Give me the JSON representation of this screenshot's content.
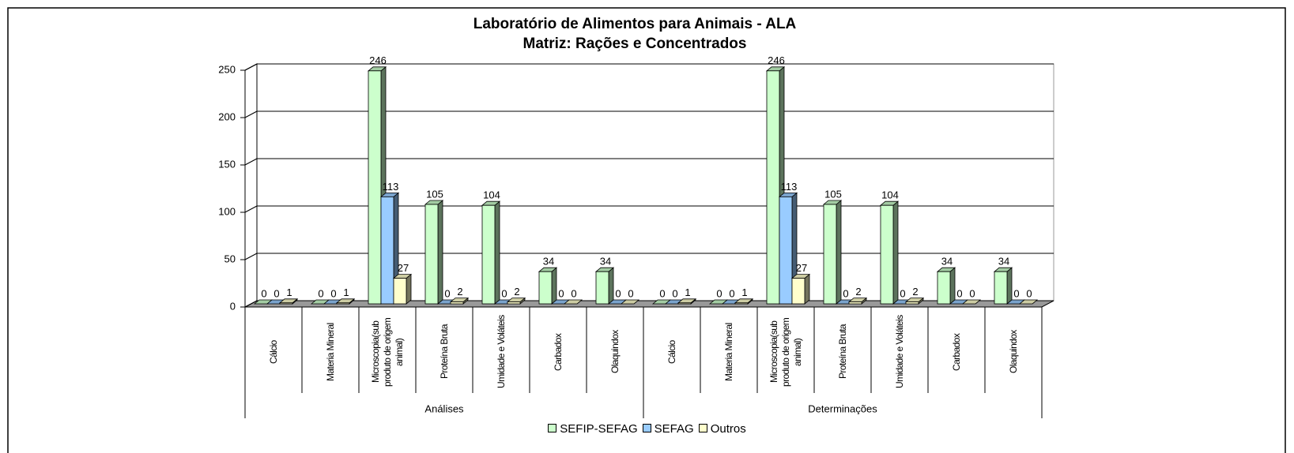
{
  "chart_data": {
    "type": "bar3d",
    "title": "Laboratório de Alimentos para Animais - ALA",
    "subtitle": "Matriz: Rações e Concentrados",
    "categories": [
      "Cálcio",
      "Materia Mineral",
      "Microscopia(sub produto de origem animal)",
      "Proteína Bruta",
      "Umidade e Voláteis",
      "Carbadox",
      "Olaquindox",
      "Cálcio",
      "Materia Mineral",
      "Microscopia(sub produto de origem animal)",
      "Proteína Bruta",
      "Umidade e Voláteis",
      "Carbadox",
      "Olaquindox"
    ],
    "groups": [
      "Análises",
      "Determinações"
    ],
    "series": [
      {
        "name": "SEFIP-SEFAG",
        "color": "#ccffcc",
        "values": [
          0,
          0,
          246,
          105,
          104,
          34,
          34,
          0,
          0,
          246,
          105,
          104,
          34,
          34
        ]
      },
      {
        "name": "SEFAG",
        "color": "#99ccff",
        "values": [
          0,
          0,
          113,
          0,
          0,
          0,
          0,
          0,
          0,
          113,
          0,
          0,
          0,
          0
        ]
      },
      {
        "name": "Outros",
        "color": "#ffffcc",
        "values": [
          1,
          1,
          27,
          2,
          2,
          0,
          0,
          1,
          1,
          27,
          2,
          2,
          0,
          0
        ]
      }
    ],
    "ylim": [
      0,
      250
    ],
    "yticks": [
      0,
      50,
      100,
      150,
      200,
      250
    ],
    "grid": true,
    "legend": "bottom"
  }
}
